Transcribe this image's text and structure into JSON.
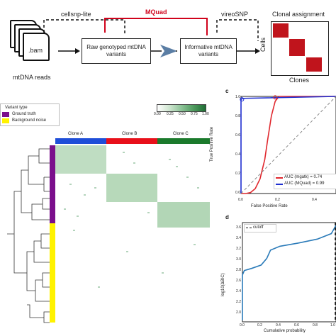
{
  "pipeline": {
    "tool_left": "cellsnp-lite",
    "tool_middle": "MQuad",
    "tool_right": "vireoSNP",
    "file_label": ".bam",
    "input_caption": "mtDNA reads",
    "raw_box": "Raw genotyped mtDNA variants",
    "informative_box": "Informative mtDNA variants",
    "clonal_title": "Clonal assignment",
    "cells_label": "Cells",
    "clones_label": "Clones",
    "colors": {
      "mquad": "#d0021b",
      "clonal": "#c0141c"
    }
  },
  "heatmap": {
    "legend_title": "Variant type",
    "legend_items": [
      {
        "label": "Ground truth",
        "color": "#7b0f8c"
      },
      {
        "label": "Background noise",
        "color": "#fff200"
      }
    ],
    "colorbar_ticks": [
      "0.00",
      "0.25",
      "0.50",
      "0.75",
      "1.00"
    ],
    "clones": [
      {
        "label": "Clone A",
        "color": "#1f4ed8"
      },
      {
        "label": "Clone B",
        "color": "#e8101a"
      },
      {
        "label": "Clone C",
        "color": "#1b7a2c"
      }
    ]
  },
  "roc": {
    "panel_letter": "c",
    "ylabel": "True Positive Rate",
    "xlabel": "False Positive Rate",
    "yticks": [
      "0.0",
      "0.2",
      "0.4",
      "0.6",
      "0.8",
      "1.0"
    ],
    "xticks": [
      "0.0",
      "0.2",
      "0.4"
    ],
    "legend": [
      {
        "label": "AUC (mgatk) = 0.74",
        "color": "#e0282e"
      },
      {
        "label": "AUC (MQuad) = 0.99",
        "color": "#1f2fd0"
      }
    ],
    "chart_data": {
      "type": "line",
      "xlim": [
        0,
        1
      ],
      "ylim": [
        0,
        1
      ],
      "series": [
        {
          "name": "AUC (mgatk) = 0.74",
          "x": [
            0.0,
            0.05,
            0.1,
            0.15,
            0.2,
            0.25,
            0.28,
            0.32,
            0.36,
            0.4,
            1.0
          ],
          "y": [
            0.0,
            0.0,
            0.01,
            0.05,
            0.15,
            0.35,
            0.55,
            0.8,
            0.95,
            1.0,
            1.0
          ]
        },
        {
          "name": "AUC (MQuad) = 0.99",
          "x": [
            0.0,
            0.0,
            0.02,
            1.0
          ],
          "y": [
            0.0,
            0.97,
            0.98,
            1.0
          ]
        },
        {
          "x": [
            0,
            1
          ],
          "y": [
            0,
            1
          ]
        }
      ]
    }
  },
  "cutoff": {
    "panel_letter": "d",
    "ylabel": "log10(ΔBIC)",
    "xlabel": "Cumulative probability",
    "yticks": [
      "2.0",
      "2.2",
      "2.4",
      "2.6",
      "2.8",
      "3.0",
      "3.2",
      "3.4",
      "3.6"
    ],
    "xticks": [
      "0.0",
      "0.2",
      "0.4",
      "0.6",
      "0.8",
      "1.0"
    ],
    "legend": "cutoff",
    "chart_data": {
      "type": "line",
      "xlim": [
        0,
        1
      ],
      "ylim": [
        1.95,
        3.75
      ],
      "series": [
        {
          "x": [
            0.0,
            0.0,
            0.02,
            0.1,
            0.2,
            0.26,
            0.3,
            0.4,
            0.6,
            0.8,
            0.95,
            1.0
          ],
          "y": [
            1.98,
            2.8,
            2.88,
            2.92,
            2.98,
            3.1,
            3.25,
            3.32,
            3.38,
            3.45,
            3.55,
            3.7
          ]
        }
      ],
      "cutoff_x": 1.0
    }
  }
}
